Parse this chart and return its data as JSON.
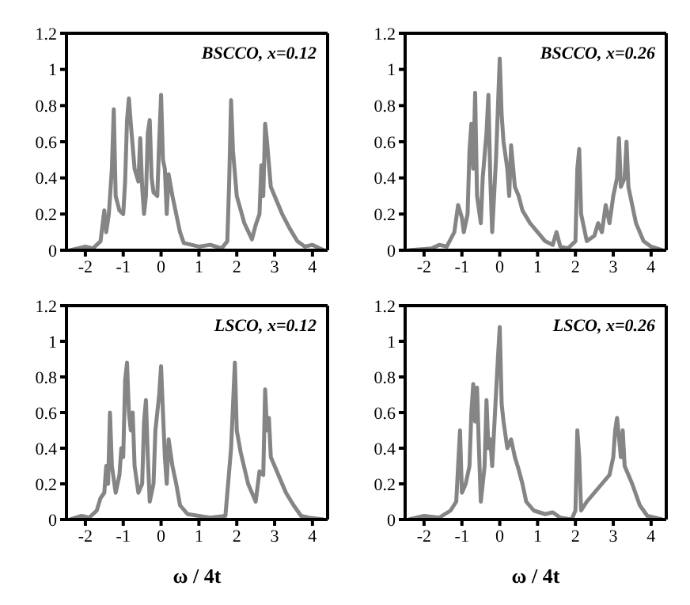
{
  "chart_data": [
    {
      "type": "line",
      "title": "BSCCO, x=0.12",
      "color": "#858585",
      "xlim": [
        -2.5,
        4.4
      ],
      "xticks": [
        -2,
        -1,
        0,
        1,
        2,
        3,
        4
      ],
      "ylim": [
        0,
        1.2
      ],
      "yticks": [
        0,
        0.2,
        0.4,
        0.6,
        0.8,
        1,
        1.2
      ],
      "x": [
        -2.4,
        -2.0,
        -1.8,
        -1.6,
        -1.5,
        -1.45,
        -1.38,
        -1.3,
        -1.25,
        -1.2,
        -1.1,
        -1.0,
        -0.95,
        -0.9,
        -0.85,
        -0.8,
        -0.7,
        -0.6,
        -0.55,
        -0.5,
        -0.45,
        -0.4,
        -0.35,
        -0.3,
        -0.25,
        -0.2,
        -0.1,
        -0.05,
        0,
        0.05,
        0.1,
        0.15,
        0.2,
        0.3,
        0.4,
        0.5,
        0.6,
        0.8,
        1.0,
        1.3,
        1.6,
        1.75,
        1.8,
        1.85,
        1.9,
        2.0,
        2.2,
        2.4,
        2.5,
        2.6,
        2.65,
        2.7,
        2.75,
        2.8,
        2.9,
        3.0,
        3.2,
        3.4,
        3.6,
        3.8,
        4.0,
        4.3
      ],
      "values": [
        0,
        0.02,
        0.01,
        0.05,
        0.22,
        0.1,
        0.2,
        0.45,
        0.78,
        0.3,
        0.22,
        0.2,
        0.38,
        0.72,
        0.84,
        0.7,
        0.45,
        0.38,
        0.62,
        0.35,
        0.2,
        0.3,
        0.65,
        0.72,
        0.4,
        0.32,
        0.3,
        0.6,
        0.86,
        0.5,
        0.45,
        0.2,
        0.42,
        0.3,
        0.2,
        0.1,
        0.04,
        0.03,
        0.02,
        0.03,
        0.01,
        0.05,
        0.38,
        0.83,
        0.55,
        0.3,
        0.15,
        0.06,
        0.14,
        0.2,
        0.47,
        0.3,
        0.7,
        0.6,
        0.35,
        0.3,
        0.2,
        0.12,
        0.05,
        0.02,
        0.03,
        0
      ]
    },
    {
      "type": "line",
      "title": "BSCCO, x=0.26",
      "color": "#858585",
      "xlim": [
        -2.5,
        4.4
      ],
      "xticks": [
        -2,
        -1,
        0,
        1,
        2,
        3,
        4
      ],
      "ylim": [
        0,
        1.2
      ],
      "yticks": [
        0,
        0.2,
        0.4,
        0.6,
        0.8,
        1,
        1.2
      ],
      "x": [
        -2.4,
        -1.8,
        -1.6,
        -1.4,
        -1.2,
        -1.1,
        -1.0,
        -0.95,
        -0.85,
        -0.8,
        -0.75,
        -0.7,
        -0.65,
        -0.6,
        -0.5,
        -0.45,
        -0.35,
        -0.3,
        -0.25,
        -0.2,
        -0.1,
        -0.05,
        0,
        0.05,
        0.1,
        0.2,
        0.25,
        0.3,
        0.4,
        0.5,
        0.6,
        0.8,
        1.0,
        1.2,
        1.4,
        1.5,
        1.6,
        1.8,
        2.0,
        2.05,
        2.1,
        2.15,
        2.3,
        2.5,
        2.6,
        2.7,
        2.8,
        2.9,
        3.0,
        3.1,
        3.15,
        3.2,
        3.3,
        3.35,
        3.4,
        3.5,
        3.6,
        3.8,
        4.0,
        4.3
      ],
      "values": [
        0,
        0.01,
        0.03,
        0.02,
        0.1,
        0.25,
        0.18,
        0.1,
        0.2,
        0.55,
        0.7,
        0.45,
        0.87,
        0.3,
        0.15,
        0.4,
        0.65,
        0.86,
        0.4,
        0.1,
        0.5,
        0.78,
        1.06,
        0.75,
        0.6,
        0.45,
        0.3,
        0.58,
        0.35,
        0.3,
        0.22,
        0.15,
        0.1,
        0.05,
        0.03,
        0.1,
        0.02,
        0.01,
        0.05,
        0.45,
        0.56,
        0.2,
        0.05,
        0.08,
        0.15,
        0.1,
        0.25,
        0.15,
        0.3,
        0.4,
        0.62,
        0.35,
        0.4,
        0.6,
        0.35,
        0.25,
        0.15,
        0.05,
        0.02,
        0
      ]
    },
    {
      "type": "line",
      "title": "LSCO, x=0.12",
      "xlabel": "ω / 4t",
      "color": "#858585",
      "xlim": [
        -2.5,
        4.4
      ],
      "xticks": [
        -2,
        -1,
        0,
        1,
        2,
        3,
        4
      ],
      "ylim": [
        0,
        1.2
      ],
      "yticks": [
        0,
        0.2,
        0.4,
        0.6,
        0.8,
        1,
        1.2
      ],
      "x": [
        -2.4,
        -2.1,
        -1.9,
        -1.7,
        -1.6,
        -1.5,
        -1.45,
        -1.4,
        -1.35,
        -1.3,
        -1.2,
        -1.1,
        -1.05,
        -1.0,
        -0.95,
        -0.9,
        -0.85,
        -0.8,
        -0.75,
        -0.7,
        -0.6,
        -0.5,
        -0.45,
        -0.4,
        -0.35,
        -0.3,
        -0.2,
        -0.15,
        -0.05,
        0,
        0.05,
        0.1,
        0.15,
        0.2,
        0.3,
        0.4,
        0.5,
        0.7,
        1.0,
        1.3,
        1.7,
        1.85,
        1.95,
        2.0,
        2.1,
        2.3,
        2.5,
        2.6,
        2.7,
        2.75,
        2.8,
        2.85,
        2.9,
        3.1,
        3.3,
        3.5,
        3.7,
        3.9,
        4.3
      ],
      "values": [
        0,
        0.02,
        0.01,
        0.05,
        0.12,
        0.15,
        0.3,
        0.2,
        0.6,
        0.3,
        0.15,
        0.25,
        0.4,
        0.35,
        0.78,
        0.88,
        0.6,
        0.5,
        0.6,
        0.3,
        0.15,
        0.2,
        0.55,
        0.67,
        0.35,
        0.1,
        0.2,
        0.5,
        0.7,
        0.86,
        0.6,
        0.35,
        0.2,
        0.45,
        0.3,
        0.2,
        0.08,
        0.03,
        0.02,
        0.01,
        0.02,
        0.4,
        0.88,
        0.5,
        0.38,
        0.2,
        0.1,
        0.27,
        0.25,
        0.73,
        0.5,
        0.57,
        0.35,
        0.25,
        0.15,
        0.08,
        0.02,
        0.01,
        0
      ]
    },
    {
      "type": "line",
      "title": "LSCO, x=0.26",
      "xlabel": "ω / 4t",
      "color": "#858585",
      "xlim": [
        -2.5,
        4.4
      ],
      "xticks": [
        -2,
        -1,
        0,
        1,
        2,
        3,
        4
      ],
      "ylim": [
        0,
        1.2
      ],
      "yticks": [
        0,
        0.2,
        0.4,
        0.6,
        0.8,
        1,
        1.2
      ],
      "x": [
        -2.4,
        -2.0,
        -1.6,
        -1.3,
        -1.15,
        -1.1,
        -1.05,
        -1.0,
        -0.9,
        -0.8,
        -0.75,
        -0.7,
        -0.65,
        -0.6,
        -0.55,
        -0.5,
        -0.4,
        -0.35,
        -0.3,
        -0.25,
        -0.2,
        -0.1,
        -0.05,
        0,
        0.05,
        0.1,
        0.2,
        0.3,
        0.4,
        0.5,
        0.6,
        0.7,
        0.9,
        1.2,
        1.4,
        1.6,
        1.9,
        2.0,
        2.05,
        2.1,
        2.15,
        2.3,
        2.5,
        2.7,
        2.9,
        3.0,
        3.05,
        3.1,
        3.2,
        3.25,
        3.3,
        3.5,
        3.7,
        3.9,
        4.3
      ],
      "values": [
        0,
        0.02,
        0.01,
        0.05,
        0.1,
        0.3,
        0.5,
        0.15,
        0.2,
        0.3,
        0.6,
        0.76,
        0.55,
        0.74,
        0.4,
        0.1,
        0.3,
        0.67,
        0.4,
        0.45,
        0.3,
        0.7,
        0.9,
        1.08,
        0.65,
        0.55,
        0.4,
        0.45,
        0.35,
        0.28,
        0.2,
        0.1,
        0.05,
        0.03,
        0.04,
        0.01,
        0,
        0.05,
        0.5,
        0.35,
        0.05,
        0.1,
        0.15,
        0.2,
        0.25,
        0.35,
        0.5,
        0.57,
        0.35,
        0.5,
        0.3,
        0.2,
        0.08,
        0.02,
        0
      ]
    }
  ]
}
